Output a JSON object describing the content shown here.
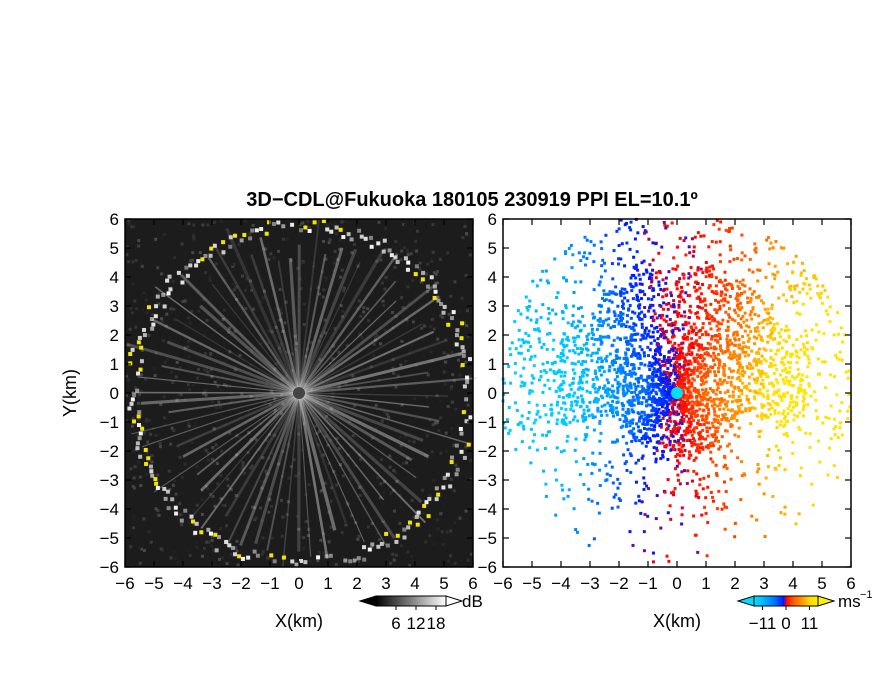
{
  "chart_data": [
    {
      "type": "heatmap",
      "panel": "left",
      "title": "3D−CDL@Fukuoka 180105 230919 PPI EL=10.1º",
      "xlabel": "X(km)",
      "ylabel": "Y(km)",
      "xlim": [
        -6,
        6
      ],
      "ylim": [
        -6,
        6
      ],
      "xticks": [
        "−6",
        "−5",
        "−4",
        "−3",
        "−2",
        "−1",
        "0",
        "1",
        "2",
        "3",
        "4",
        "5",
        "6"
      ],
      "yticks": [
        "−6",
        "−5",
        "−4",
        "−3",
        "−2",
        "−1",
        "0",
        "1",
        "2",
        "3",
        "4",
        "5",
        "6"
      ],
      "colorbar": {
        "unit": "dB",
        "ticks": [
          "6",
          "12",
          "18"
        ],
        "values": [
          6,
          12,
          18
        ],
        "range": [
          0,
          21
        ]
      },
      "colors": {
        "background": "#1c1c1c",
        "beam": "#d8d8d8",
        "edge": "#ffffff",
        "strong": "#f5e400"
      }
    },
    {
      "type": "heatmap",
      "panel": "right",
      "xlabel": "X(km)",
      "xlim": [
        -6,
        6
      ],
      "ylim": [
        -6,
        6
      ],
      "xticks": [
        "−6",
        "−5",
        "−4",
        "−3",
        "−2",
        "−1",
        "0",
        "1",
        "2",
        "3",
        "4",
        "5",
        "6"
      ],
      "yticks": [
        "−6",
        "−5",
        "−4",
        "−3",
        "−2",
        "−1",
        "0",
        "1",
        "2",
        "3",
        "4",
        "5",
        "6"
      ],
      "colorbar": {
        "unit": "ms",
        "unit_exp": "−1",
        "ticks": [
          "−11",
          "0",
          "11"
        ],
        "values": [
          -11,
          0,
          11
        ],
        "range": [
          -15,
          15
        ]
      },
      "colors": {
        "negative_far": "#00c8ff",
        "negative_near": "#0010ff",
        "zero": "#ff0000",
        "positive_mid": "#ff9000",
        "positive_far": "#ffef00"
      }
    }
  ]
}
